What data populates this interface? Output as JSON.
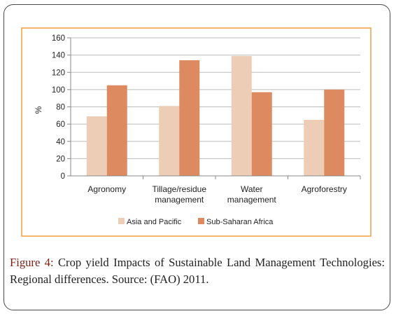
{
  "chart_data": {
    "type": "bar",
    "categories": [
      [
        "Agronomy"
      ],
      [
        "Tillage/residue",
        "management"
      ],
      [
        "Water",
        "management"
      ],
      [
        "Agroforestry"
      ]
    ],
    "series": [
      {
        "name": "Asia and Pacific",
        "values": [
          69,
          81,
          139,
          65
        ],
        "color": "#eecdb7"
      },
      {
        "name": "Sub-Saharan Africa",
        "values": [
          105,
          134,
          97,
          100
        ],
        "color": "#dd8a60"
      }
    ],
    "ylabel": "%",
    "ylim": [
      0,
      160
    ],
    "yticks": [
      0,
      20,
      40,
      60,
      80,
      100,
      120,
      140,
      160
    ],
    "grid": true,
    "legend_position": "bottom",
    "border_color": "#f0a64a"
  },
  "caption": {
    "label": "Figure 4:",
    "text": " Crop yield Impacts of Sustainable Land Management Technologies: Regional differences. Source: (FAO) 2011."
  }
}
